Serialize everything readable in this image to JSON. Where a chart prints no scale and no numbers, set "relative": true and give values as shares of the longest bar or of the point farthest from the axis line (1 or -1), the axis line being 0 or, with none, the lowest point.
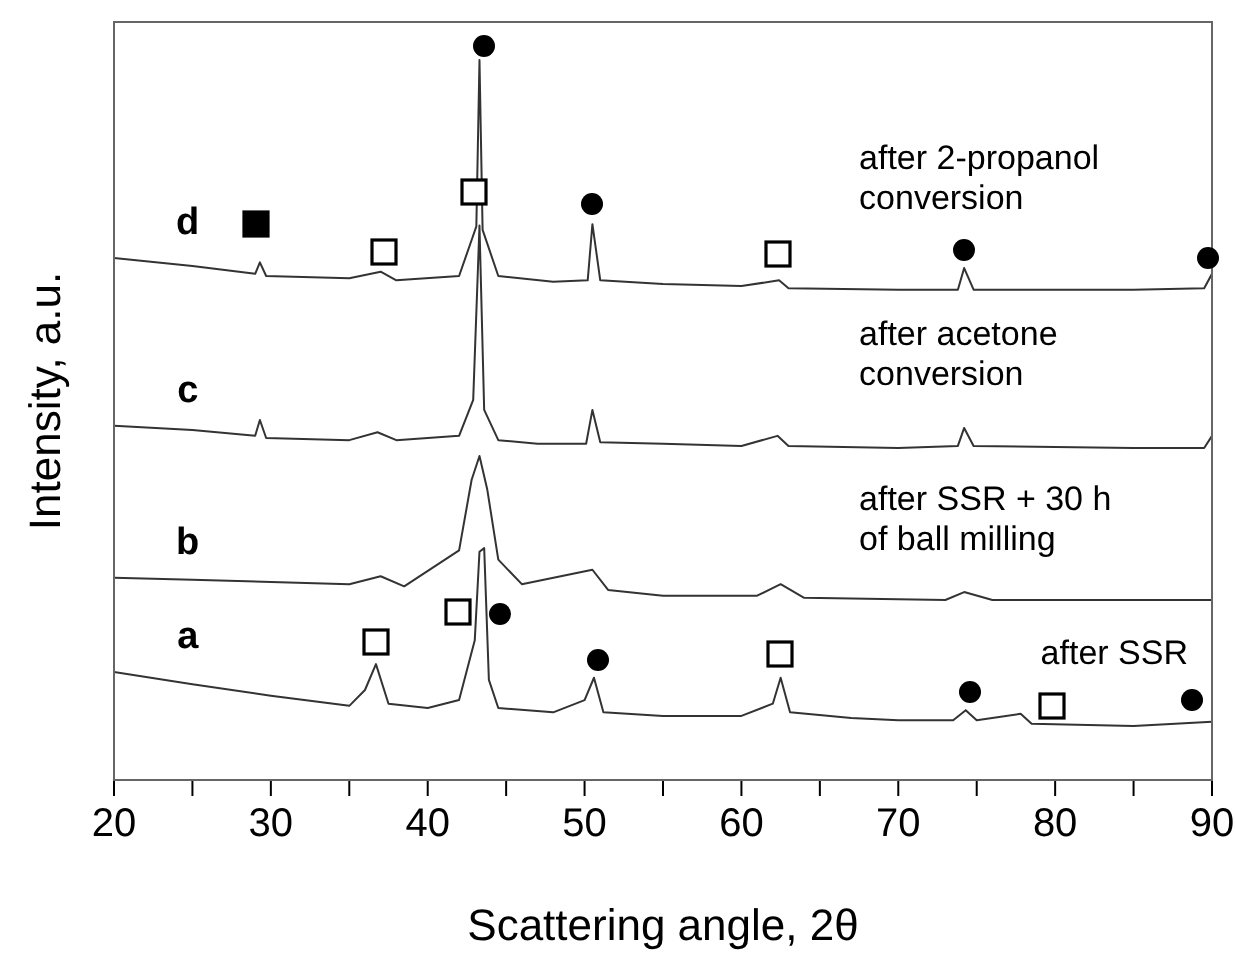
{
  "chart_data": {
    "type": "line",
    "relative": true,
    "xlabel": "Scattering angle, 2θ",
    "ylabel": "Intensity, a.u.",
    "xlim": [
      20,
      90
    ],
    "xticks": [
      20,
      {
        "value": 25,
        "label": null
      },
      30,
      {
        "value": 35,
        "label": null
      },
      40,
      {
        "value": 45,
        "label": null
      },
      50,
      {
        "value": 55,
        "label": null
      },
      60,
      {
        "value": 65,
        "label": null
      },
      70,
      {
        "value": 75,
        "label": null
      },
      80,
      {
        "value": 85,
        "label": null
      },
      90
    ],
    "series": [
      {
        "name": "a",
        "color": "#333333",
        "x": [
          20,
          25,
          30,
          35,
          36,
          36.7,
          37.5,
          40,
          42,
          43,
          43.3,
          43.6,
          43.9,
          44.5,
          48,
          50,
          50.6,
          51.2,
          55,
          60,
          62,
          62.5,
          63.1,
          67,
          70,
          73.5,
          74.3,
          75,
          77.8,
          78.5,
          85,
          90
        ],
        "values": [
          0.15,
          0.133,
          0.117,
          0.103,
          0.125,
          0.161,
          0.106,
          0.1,
          0.111,
          0.194,
          0.317,
          0.322,
          0.139,
          0.1,
          0.094,
          0.111,
          0.142,
          0.094,
          0.089,
          0.089,
          0.106,
          0.142,
          0.094,
          0.086,
          0.083,
          0.083,
          0.097,
          0.083,
          0.092,
          0.078,
          0.075,
          0.081
        ]
      },
      {
        "name": "b",
        "color": "#333333",
        "x": [
          20,
          25,
          35,
          37,
          38.5,
          42,
          42.8,
          43.3,
          43.8,
          44.5,
          46,
          50.5,
          51.5,
          55,
          61,
          62.5,
          64,
          73,
          74.2,
          76,
          90
        ],
        "values": [
          0.281,
          0.278,
          0.272,
          0.283,
          0.269,
          0.319,
          0.417,
          0.45,
          0.403,
          0.306,
          0.272,
          0.292,
          0.264,
          0.256,
          0.256,
          0.272,
          0.253,
          0.25,
          0.261,
          0.25,
          0.25
        ]
      },
      {
        "name": "c",
        "color": "#333333",
        "x": [
          20,
          25,
          29,
          29.3,
          29.7,
          35,
          36.8,
          38,
          42,
          42.9,
          43.3,
          43.6,
          44.5,
          47,
          50.1,
          50.5,
          51,
          55,
          60,
          62.3,
          63,
          70,
          73.8,
          74.2,
          74.8,
          85,
          89.5,
          90
        ],
        "values": [
          0.492,
          0.486,
          0.478,
          0.5,
          0.475,
          0.472,
          0.483,
          0.472,
          0.478,
          0.528,
          0.77,
          0.514,
          0.472,
          0.467,
          0.467,
          0.514,
          0.469,
          0.467,
          0.464,
          0.478,
          0.464,
          0.461,
          0.464,
          0.489,
          0.464,
          0.461,
          0.461,
          0.478
        ]
      },
      {
        "name": "d",
        "color": "#333333",
        "x": [
          20,
          25,
          29,
          29.3,
          29.7,
          35,
          37,
          38,
          42,
          42.8,
          43.1,
          43.3,
          43.5,
          44.5,
          48,
          50.2,
          50.5,
          51,
          55,
          60,
          62.4,
          63,
          70,
          73.8,
          74.2,
          74.8,
          85,
          89.5,
          90
        ],
        "values": [
          0.725,
          0.714,
          0.703,
          0.719,
          0.7,
          0.697,
          0.706,
          0.694,
          0.7,
          0.75,
          0.769,
          1,
          0.764,
          0.7,
          0.692,
          0.694,
          0.772,
          0.694,
          0.689,
          0.686,
          0.694,
          0.683,
          0.681,
          0.681,
          0.711,
          0.681,
          0.681,
          0.683,
          0.703
        ]
      }
    ],
    "annotations": [
      "after SSR",
      "after SSR + 30 h\nof ball milling",
      "after acetone\nconversion",
      "after 2-propanol\nconversion"
    ]
  }
}
